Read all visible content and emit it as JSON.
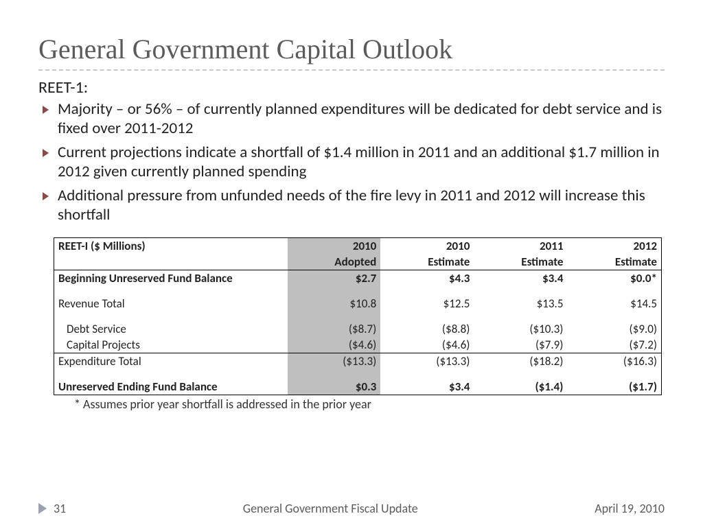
{
  "title": "General Government Capital Outlook",
  "subhead": "REET-1:",
  "bullets": [
    "Majority – or 56% – of currently planned expenditures will be dedicated for debt service and is fixed over 2011-2012",
    "Current projections indicate a shortfall of $1.4 million in 2011 and an additional $1.7 million in 2012 given currently planned spending",
    "Additional pressure from unfunded needs of the fire levy in 2011 and 2012 will increase this shortfall"
  ],
  "table": {
    "header_label": "REET-I  ($ Millions)",
    "col_years": [
      "2010",
      "2010",
      "2011",
      "2012"
    ],
    "col_types": [
      "Adopted",
      "Estimate",
      "Estimate",
      "Estimate"
    ],
    "highlight_col_index": 0,
    "rows": {
      "beginning": {
        "label": "Beginning Unreserved Fund Balance",
        "vals": [
          "$2.7",
          "$4.3",
          "$3.4",
          "$0.0*"
        ]
      },
      "revenue": {
        "label": "Revenue Total",
        "vals": [
          "$10.8",
          "$12.5",
          "$13.5",
          "$14.5"
        ]
      },
      "debt": {
        "label": "Debt Service",
        "vals": [
          "($8.7)",
          "($8.8)",
          "($10.3)",
          "($9.0)"
        ]
      },
      "capital": {
        "label": "Capital Projects",
        "vals": [
          "($4.6)",
          "($4.6)",
          "($7.9)",
          "($7.2)"
        ]
      },
      "exp_total": {
        "label": "Expenditure Total",
        "vals": [
          "($13.3)",
          "($13.3)",
          "($18.2)",
          "($16.3)"
        ]
      },
      "ending": {
        "label": "Unreserved Ending Fund Balance",
        "vals": [
          "$0.3",
          "$3.4",
          "($1.4)",
          "($1.7)"
        ]
      }
    }
  },
  "footnote": "* Assumes prior year shortfall is addressed in the prior year",
  "footer": {
    "page": "31",
    "center": "General Government Fiscal Update",
    "date": "April 19, 2010"
  },
  "colors": {
    "title": "#5b5b5b",
    "bullet_arrow": "#8a4a4a",
    "highlight_col": "#bfbfbf",
    "footer_arrow": "#9aa0b0"
  }
}
